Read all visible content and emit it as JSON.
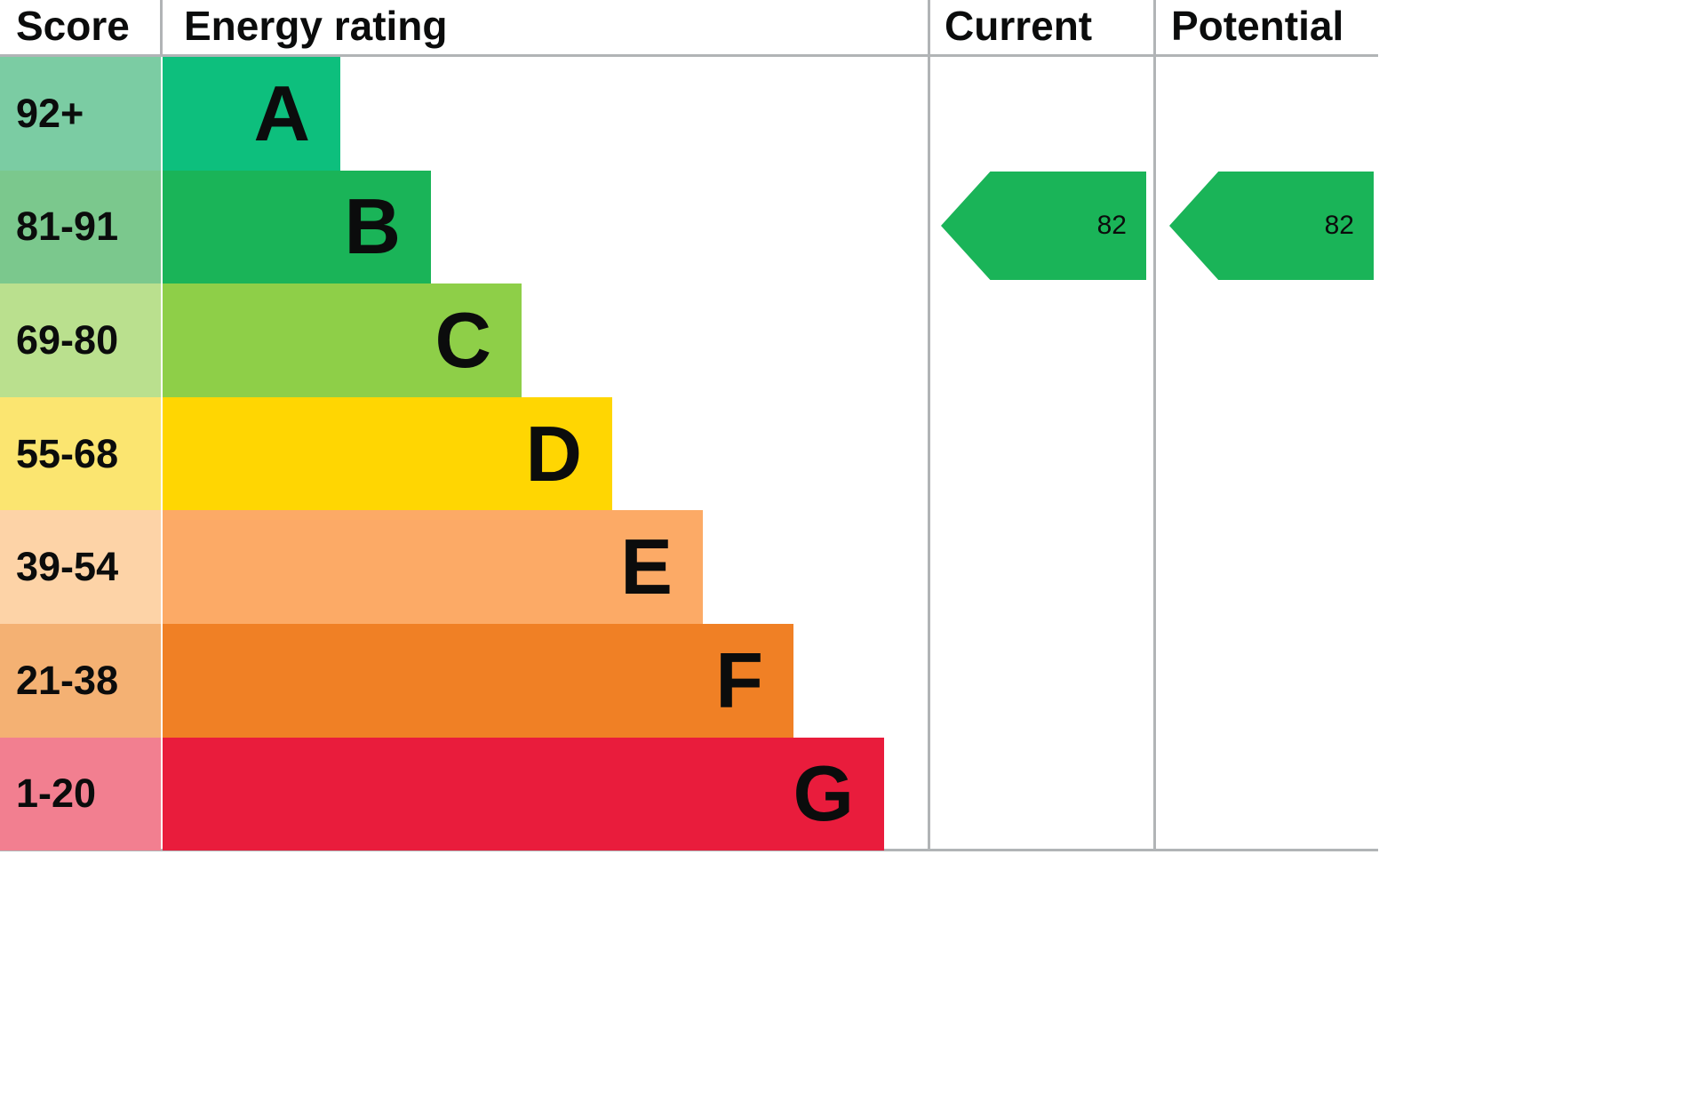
{
  "header": {
    "score_label": "Score",
    "rating_label": "Energy rating",
    "current_label": "Current",
    "potential_label": "Potential"
  },
  "bands": [
    {
      "score": "92+",
      "letter": "A",
      "bar_color": "#0dbf7d",
      "score_color": "#7bcca3"
    },
    {
      "score": "81-91",
      "letter": "B",
      "bar_color": "#1ab458",
      "score_color": "#7bc88d"
    },
    {
      "score": "69-80",
      "letter": "C",
      "bar_color": "#8ecf48",
      "score_color": "#bae08e"
    },
    {
      "score": "55-68",
      "letter": "D",
      "bar_color": "#ffd602",
      "score_color": "#fbe570"
    },
    {
      "score": "39-54",
      "letter": "E",
      "bar_color": "#fcaa66",
      "score_color": "#fdd3a7"
    },
    {
      "score": "21-38",
      "letter": "F",
      "bar_color": "#f08025",
      "score_color": "#f4b173"
    },
    {
      "score": "1-20",
      "letter": "G",
      "bar_color": "#e91c3c",
      "score_color": "#f27f90"
    }
  ],
  "current": {
    "value": "82",
    "arrow_color": "#1ab458"
  },
  "potential": {
    "value": "82",
    "arrow_color": "#1ab458"
  },
  "chart_data": {
    "type": "bar",
    "title": "Energy rating",
    "categories": [
      "A",
      "B",
      "C",
      "D",
      "E",
      "F",
      "G"
    ],
    "score_ranges": [
      "92+",
      "81-91",
      "69-80",
      "55-68",
      "39-54",
      "21-38",
      "1-20"
    ],
    "band_colors": [
      "#0dbf7d",
      "#1ab458",
      "#8ecf48",
      "#ffd602",
      "#fcaa66",
      "#f08025",
      "#e91c3c"
    ],
    "columns": [
      "Score",
      "Energy rating",
      "Current",
      "Potential"
    ],
    "current": 82,
    "current_band": "B",
    "potential": 82,
    "potential_band": "B",
    "legend_position": "none",
    "grid": false
  }
}
